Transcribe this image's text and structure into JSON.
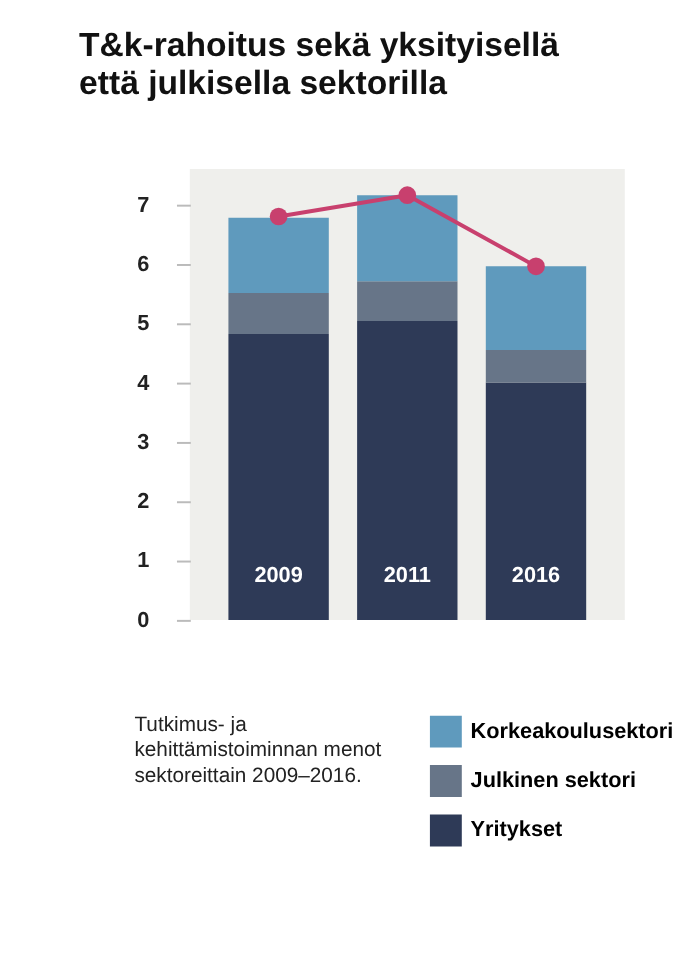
{
  "chart_data": {
    "type": "bar",
    "title": "T&k-rahoitus sekä yksityisellä että julkisella sektorilla",
    "categories": [
      "2009",
      "2011",
      "2016"
    ],
    "stacked": true,
    "series": [
      {
        "name": "Yritykset",
        "color": "#2e3a57",
        "values": [
          4.82,
          5.04,
          4.0
        ]
      },
      {
        "name": "Julkinen sektori",
        "color": "#677588",
        "values": [
          0.69,
          0.67,
          0.55
        ]
      },
      {
        "name": "Korkeakoulusektori",
        "color": "#5f9abd",
        "values": [
          1.27,
          1.45,
          1.41
        ]
      },
      {
        "type": "line",
        "color": "#c8406e",
        "values": [
          6.8,
          7.16,
          5.96
        ],
        "marker": "circle"
      }
    ],
    "ylim": [
      0,
      7.6
    ],
    "yticks": [
      0,
      1,
      2,
      3,
      4,
      5,
      6,
      7
    ],
    "grid": false,
    "legend": "bottom right",
    "tick_labels": "y",
    "annotations": [
      "Tutkimus- ja kehittämistoiminnan menot sektoreittain 2009–2016."
    ]
  }
}
